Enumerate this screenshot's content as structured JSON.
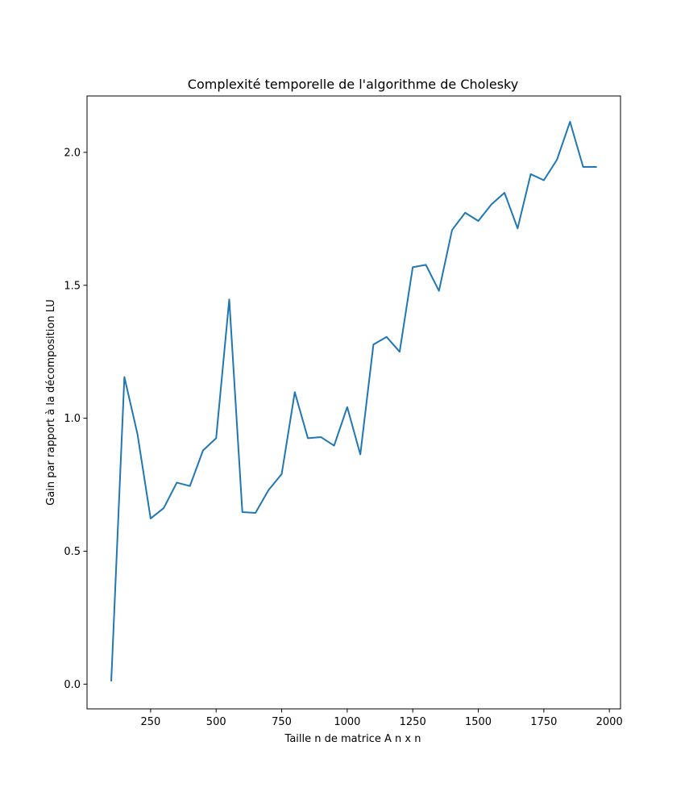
{
  "chart_data": {
    "type": "line",
    "title": "Complexité temporelle de l'algorithme de Cholesky",
    "xlabel": "Taille n de matrice A n x n",
    "ylabel": "Gain par rapport à la décomposition LU",
    "xlim": [
      7.5,
      2042.5
    ],
    "ylim": [
      -0.093,
      2.212
    ],
    "xticks": [
      250,
      500,
      750,
      1000,
      1250,
      1500,
      1750,
      2000
    ],
    "xtick_labels": [
      "250",
      "500",
      "750",
      "1000",
      "1250",
      "1500",
      "1750",
      "2000"
    ],
    "yticks": [
      0.0,
      0.5,
      1.0,
      1.5,
      2.0
    ],
    "ytick_labels": [
      "0.0",
      "0.5",
      "1.0",
      "1.5",
      "2.0"
    ],
    "grid": false,
    "line_color": "#1f77b4",
    "series": [
      {
        "x": [
          100,
          150,
          200,
          250,
          300,
          350,
          400,
          450,
          500,
          550,
          600,
          650,
          700,
          750,
          800,
          850,
          900,
          950,
          1000,
          1050,
          1100,
          1150,
          1200,
          1250,
          1300,
          1350,
          1400,
          1450,
          1500,
          1550,
          1600,
          1650,
          1700,
          1750,
          1800,
          1850,
          1900,
          1950
        ],
        "values": [
          0.013,
          1.155,
          0.94,
          0.623,
          0.662,
          0.758,
          0.745,
          0.879,
          0.925,
          1.447,
          0.647,
          0.644,
          0.73,
          0.79,
          1.098,
          0.925,
          0.929,
          0.897,
          1.042,
          0.864,
          1.277,
          1.306,
          1.25,
          1.568,
          1.577,
          1.479,
          1.708,
          1.773,
          1.742,
          1.804,
          1.848,
          1.714,
          1.918,
          1.895,
          1.972,
          2.115,
          1.945,
          1.945
        ]
      }
    ]
  }
}
